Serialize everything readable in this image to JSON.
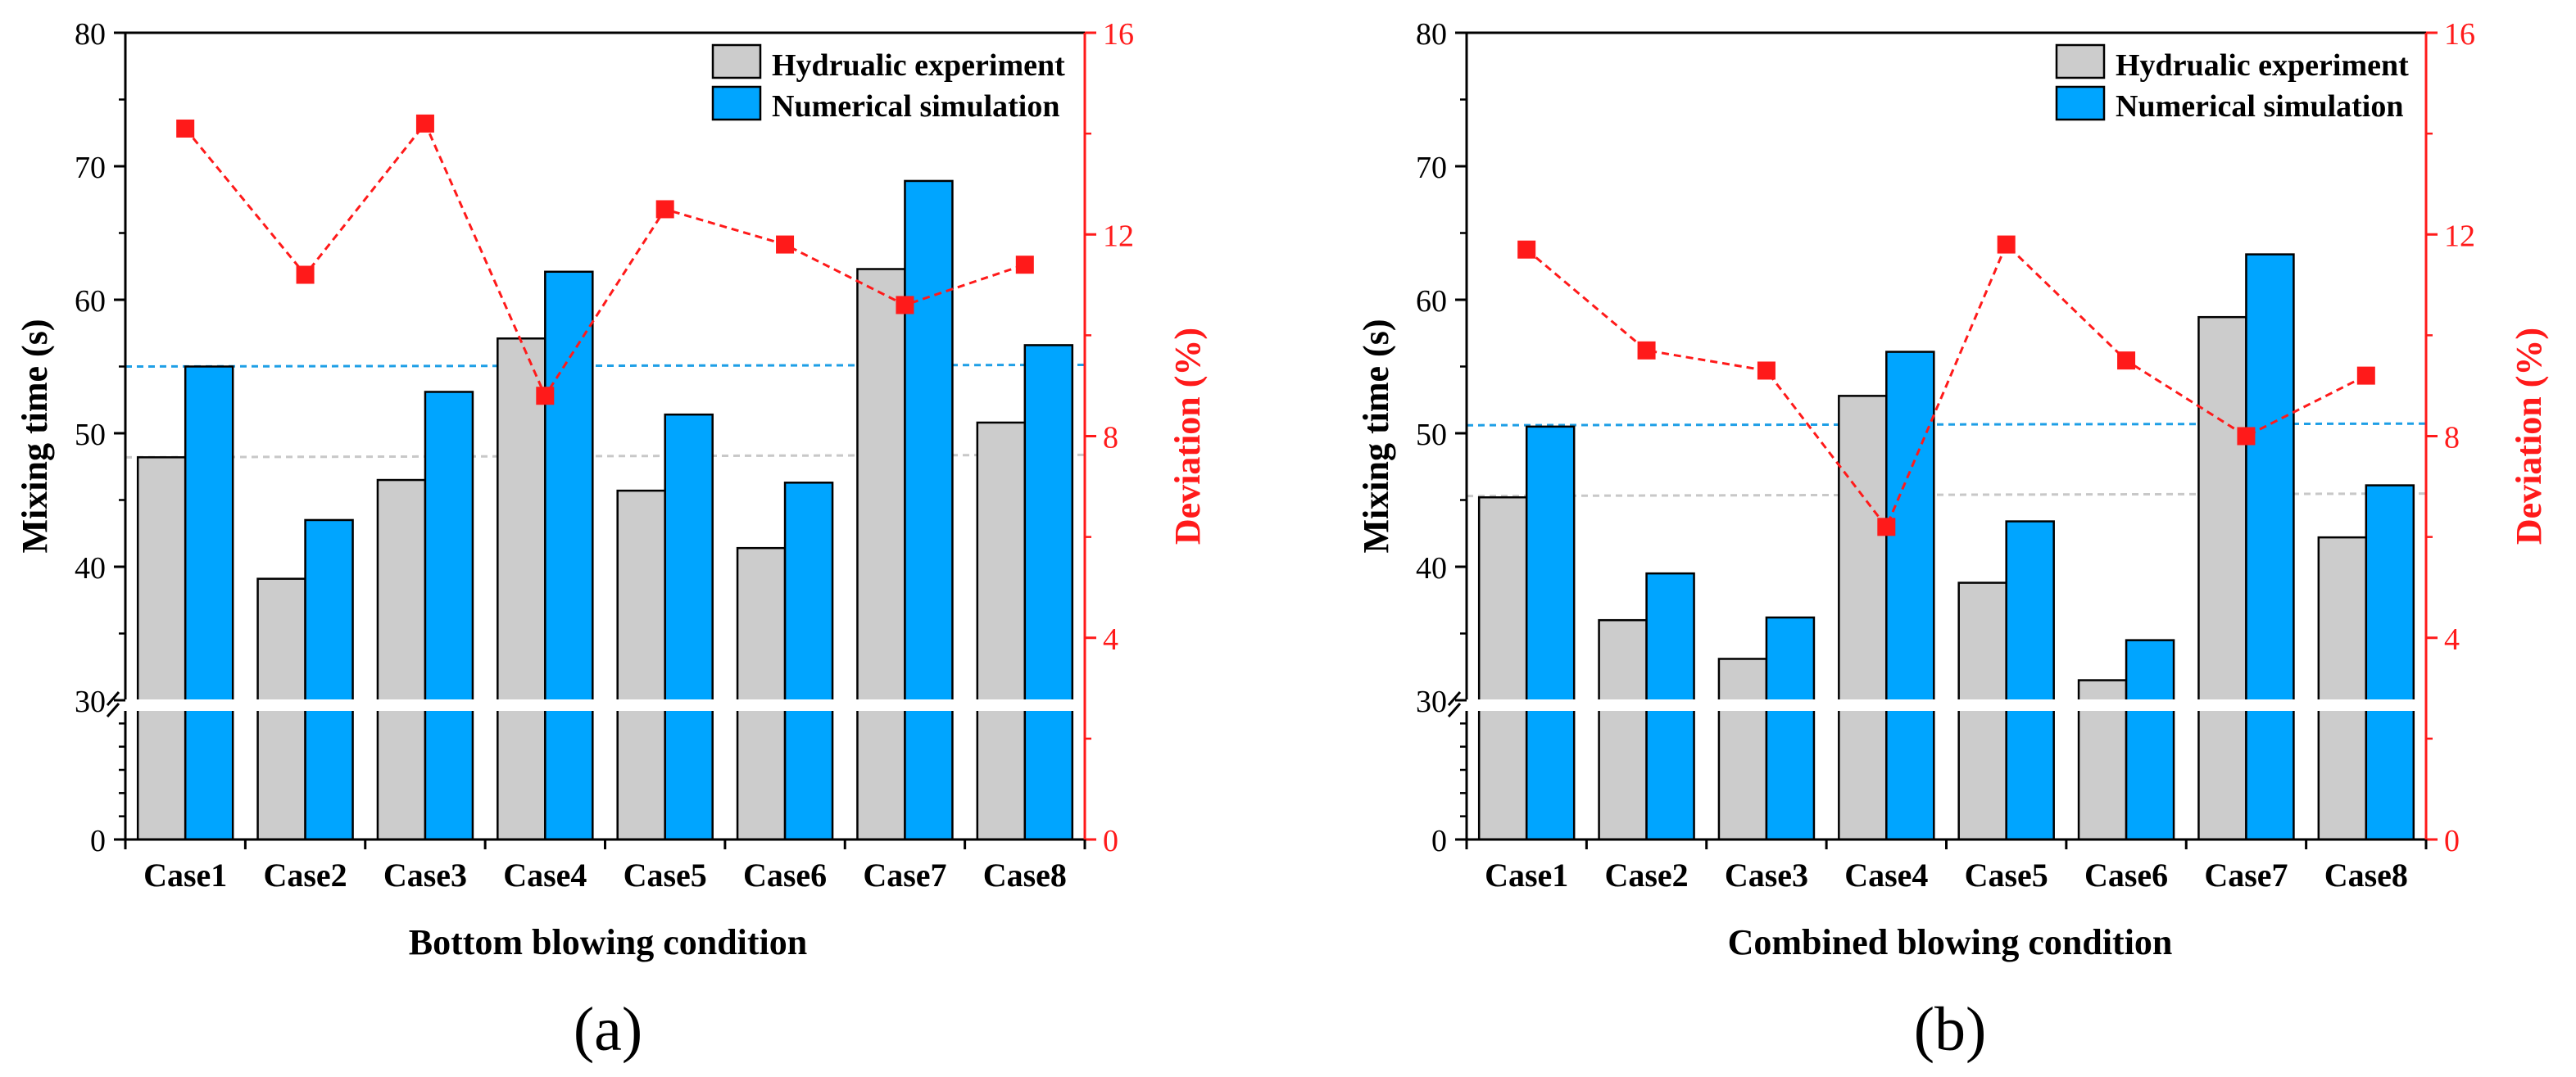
{
  "colors": {
    "hydraulic": "#cccccc",
    "numerical": "#00a5ff",
    "deviation": "#ff1a1a",
    "hydraulic_avg_line": "#c8c8c8",
    "numerical_avg_line": "#1e9fe6",
    "axis": "#000000",
    "right_axis": "#ff1a1a"
  },
  "chart_data": [
    {
      "type": "bar",
      "panel_label": "(a)",
      "xlabel": "Bottom blowing condition",
      "ylabel": "Mixing time (s)",
      "y2label": "Deviation (%)",
      "categories": [
        "Case1",
        "Case2",
        "Case3",
        "Case4",
        "Case5",
        "Case6",
        "Case7",
        "Case8"
      ],
      "ylim": [
        0,
        80
      ],
      "y_break": [
        0,
        30
      ],
      "yticks": [
        0,
        30,
        40,
        50,
        60,
        70,
        80
      ],
      "ytick_labels": [
        "0",
        "30",
        "40",
        "50",
        "60",
        "70",
        "80"
      ],
      "y2lim": [
        0,
        16
      ],
      "y2ticks": [
        0,
        4,
        8,
        12,
        16
      ],
      "y2tick_labels": [
        "0",
        "4",
        "8",
        "12",
        "16"
      ],
      "legend": [
        "Hydrualic experiment",
        "Numerical simulation"
      ],
      "legend_position": "top-right",
      "series": [
        {
          "name": "Hydrualic experiment",
          "kind": "bar",
          "values": [
            48.2,
            39.1,
            46.5,
            57.1,
            45.7,
            41.4,
            62.3,
            50.8
          ]
        },
        {
          "name": "Numerical simulation",
          "kind": "bar",
          "values": [
            55.0,
            43.5,
            53.1,
            62.1,
            51.4,
            46.3,
            68.9,
            56.6
          ]
        },
        {
          "name": "Deviation",
          "kind": "line",
          "axis": "right",
          "values": [
            14.1,
            11.2,
            14.2,
            8.8,
            12.5,
            11.8,
            10.6,
            11.4
          ]
        }
      ],
      "avg_lines": {
        "hydraulic": 48.2,
        "numerical": 55.0
      }
    },
    {
      "type": "bar",
      "panel_label": "(b)",
      "xlabel": "Combined blowing condition",
      "ylabel": "Mixing time (s)",
      "y2label": "Deviation (%)",
      "categories": [
        "Case1",
        "Case2",
        "Case3",
        "Case4",
        "Case5",
        "Case6",
        "Case7",
        "Case8"
      ],
      "ylim": [
        0,
        80
      ],
      "y_break": [
        0,
        30
      ],
      "yticks": [
        0,
        30,
        40,
        50,
        60,
        70,
        80
      ],
      "ytick_labels": [
        "0",
        "30",
        "40",
        "50",
        "60",
        "70",
        "80"
      ],
      "y2lim": [
        0,
        16
      ],
      "y2ticks": [
        0,
        4,
        8,
        12,
        16
      ],
      "y2tick_labels": [
        "0",
        "4",
        "8",
        "12",
        "16"
      ],
      "legend": [
        "Hydrualic experiment",
        "Numerical simulation"
      ],
      "legend_position": "top-right",
      "series": [
        {
          "name": "Hydrualic experiment",
          "kind": "bar",
          "values": [
            45.2,
            36.0,
            33.1,
            52.8,
            38.8,
            31.5,
            58.7,
            42.2
          ]
        },
        {
          "name": "Numerical simulation",
          "kind": "bar",
          "values": [
            50.5,
            39.5,
            36.2,
            56.1,
            43.4,
            34.5,
            63.4,
            46.1
          ]
        },
        {
          "name": "Deviation",
          "kind": "line",
          "axis": "right",
          "values": [
            11.7,
            9.7,
            9.3,
            6.2,
            11.8,
            9.5,
            8.0,
            9.2
          ]
        }
      ],
      "avg_lines": {
        "hydraulic": 45.3,
        "numerical": 50.6
      }
    }
  ]
}
